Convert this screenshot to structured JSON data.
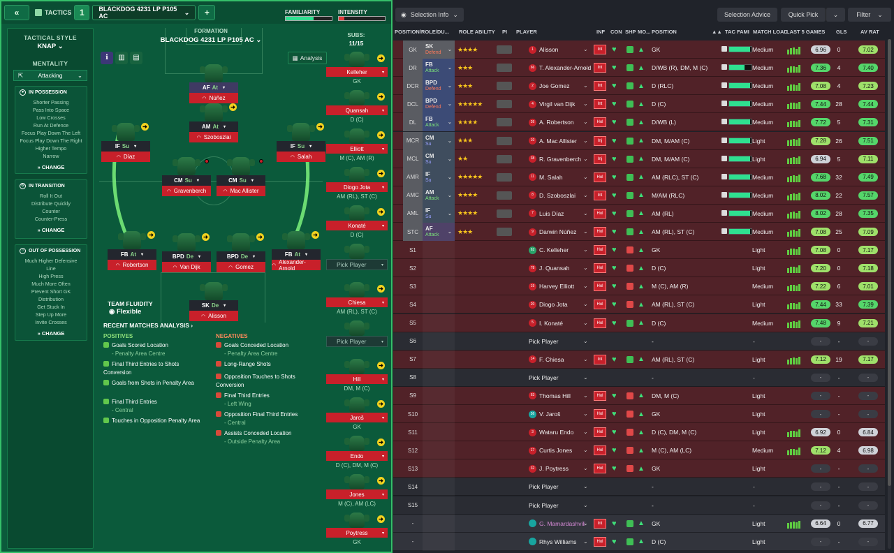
{
  "toolbar": {
    "back_icon": "double-chevron-left-icon",
    "tactics_label": "TACTICS",
    "slot_number": "1",
    "tactic_name": "BLACKDOG 4231 LP P105 AC",
    "add_label": "+",
    "familiarity_label": "FAMILIARITY",
    "familiarity_value": 0.6,
    "intensity_label": "INTENSITY",
    "intensity_value": 0.12
  },
  "side": {
    "style_title": "TACTICAL STYLE",
    "style_value": "KNAP",
    "mentality_title": "MENTALITY",
    "mentality_value": "Attacking",
    "in_possession": {
      "title": "IN POSSESSION",
      "items": [
        "Shorter Passing",
        "Pass Into Space",
        "Low Crosses",
        "Run At Defence",
        "Focus Play Down The Left",
        "Focus Play Down The Right",
        "Higher Tempo",
        "Narrow"
      ],
      "change": "CHANGE"
    },
    "in_transition": {
      "title": "IN TRANSITION",
      "items": [
        "Roll It Out",
        "Distribute Quickly",
        "Counter",
        "Counter-Press"
      ],
      "change": "CHANGE"
    },
    "out_of_possession": {
      "title": "OUT OF POSSESSION",
      "items": [
        "Much Higher Defensive",
        "Line",
        "High Press",
        "Much More Often",
        "Prevent Short GK",
        "Distribution",
        "Get Stuck In",
        "Step Up More",
        "Invite Crosses"
      ],
      "change": "CHANGE"
    }
  },
  "formation": {
    "title": "FORMATION",
    "name": "BLACKDOG 4231 LP P105 AC",
    "analysis": "Analysis",
    "subs_label": "SUBS:",
    "subs_count": "11/15",
    "fluidity_title": "TEAM FLUIDITY",
    "fluidity_value": "Flexible"
  },
  "pitch_players": [
    {
      "role": "AF",
      "duty": "At",
      "name": "Núñez"
    },
    {
      "role": "IF",
      "duty": "Su",
      "name": "Díaz"
    },
    {
      "role": "AM",
      "duty": "At",
      "name": "Szoboszlai"
    },
    {
      "role": "IF",
      "duty": "Su",
      "name": "Salah"
    },
    {
      "role": "CM",
      "duty": "Su",
      "name": "Gravenberch"
    },
    {
      "role": "CM",
      "duty": "Su",
      "name": "Mac Allister"
    },
    {
      "role": "FB",
      "duty": "At",
      "name": "Robertson"
    },
    {
      "role": "BPD",
      "duty": "De",
      "name": "Van Dijk"
    },
    {
      "role": "BPD",
      "duty": "De",
      "name": "Gomez"
    },
    {
      "role": "FB",
      "duty": "At",
      "name": "Alexander-Arnold"
    },
    {
      "role": "SK",
      "duty": "De",
      "name": "Alisson"
    }
  ],
  "subs": [
    {
      "name": "Kelleher",
      "pos": "GK"
    },
    {
      "name": "Quansah",
      "pos": "D (C)"
    },
    {
      "name": "Elliott",
      "pos": "M (C), AM (R)"
    },
    {
      "name": "Diogo Jota",
      "pos": "AM (RL), ST (C)"
    },
    {
      "name": "Konaté",
      "pos": "D (C)"
    },
    {
      "name": "Pick Player",
      "pos": ""
    },
    {
      "name": "Chiesa",
      "pos": "AM (RL), ST (C)"
    },
    {
      "name": "Pick Player",
      "pos": ""
    },
    {
      "name": "Hill",
      "pos": "DM, M (C)"
    },
    {
      "name": "Jaroš",
      "pos": "GK"
    },
    {
      "name": "Endo",
      "pos": "D (C), DM, M (C)"
    },
    {
      "name": "Jones",
      "pos": "M (C), AM (LC)"
    },
    {
      "name": "Poytress",
      "pos": "GK"
    }
  ],
  "analysis": {
    "title": "RECENT MATCHES ANALYSIS ›",
    "positives_title": "POSITIVES",
    "negatives_title": "NEGATIVES",
    "positives": [
      {
        "text": "Goals Scored Location",
        "sub": "- Penalty Area Centre"
      },
      {
        "text": "Final Third Entries to Shots Conversion",
        "sub": ""
      },
      {
        "text": "Goals from Shots in Penalty Area",
        "sub": ""
      },
      {
        "text": "Final Third Entries",
        "sub": "- Central"
      },
      {
        "text": "Touches in Opposition Penalty Area",
        "sub": ""
      }
    ],
    "negatives": [
      {
        "text": "Goals Conceded Location",
        "sub": "- Penalty Area Centre"
      },
      {
        "text": "Long-Range Shots",
        "sub": ""
      },
      {
        "text": "Opposition Touches to Shots Conversion",
        "sub": ""
      },
      {
        "text": "Final Third Entries",
        "sub": "- Left Wing"
      },
      {
        "text": "Opposition Final Third Entries",
        "sub": "- Central"
      },
      {
        "text": "Assists Conceded Location",
        "sub": "- Outside Penalty Area"
      }
    ]
  },
  "right": {
    "selection_info": "Selection Info",
    "selection_advice": "Selection Advice",
    "quick_pick": "Quick Pick",
    "filter": "Filter",
    "headers": {
      "pos_role": "POSITION/ROLE/DU...",
      "role_ability": "ROLE ABILITY",
      "pi": "PI",
      "player": "PLAYER",
      "inf": "INF",
      "con": "CON",
      "shp": "SHP",
      "mo": "MO...",
      "position": "POSITION",
      "tac": "TAC FAMI",
      "load": "MATCH LOAD",
      "last5": "LAST 5 GAMES",
      "gls": "GLS",
      "avrat": "AV RAT"
    },
    "rows": [
      {
        "slot": "GK",
        "role": "SK",
        "duty": "Defend",
        "stars": "★★★★",
        "num": "1",
        "name": "Alisson",
        "inf": "Int",
        "position": "GK",
        "tac": 0.95,
        "load": "Medium",
        "last5": "6.96",
        "gls": "0",
        "avrat": "7.02"
      },
      {
        "slot": "DR",
        "role": "FB",
        "duty": "Attack",
        "stars": "★★★",
        "num": "66",
        "name": "T. Alexander-Arnold",
        "inf": "Int",
        "position": "D/WB (R), DM, M (C)",
        "tac": 0.7,
        "load": "Medium",
        "last5": "7.36",
        "gls": "4",
        "avrat": "7.40"
      },
      {
        "slot": "DCR",
        "role": "BPD",
        "duty": "Defend",
        "stars": "★★★",
        "num": "2",
        "name": "Joe Gomez",
        "inf": "Int",
        "position": "D (RLC)",
        "tac": 0.95,
        "load": "Medium",
        "last5": "7.08",
        "gls": "4",
        "avrat": "7.23"
      },
      {
        "slot": "DCL",
        "role": "BPD",
        "duty": "Defend",
        "stars": "★★★★★",
        "num": "4",
        "name": "Virgil van Dijk",
        "inf": "Int",
        "position": "D (C)",
        "tac": 0.95,
        "load": "Medium",
        "last5": "7.44",
        "gls": "28",
        "avrat": "7.44"
      },
      {
        "slot": "DL",
        "role": "FB",
        "duty": "Attack",
        "stars": "★★★★",
        "num": "26",
        "name": "A. Robertson",
        "inf": "Hol",
        "position": "D/WB (L)",
        "tac": 0.95,
        "load": "Medium",
        "last5": "7.72",
        "gls": "5",
        "avrat": "7.31"
      },
      {
        "slot": "MCR",
        "role": "CM",
        "duty": "Su",
        "stars": "★★★",
        "num": "10",
        "name": "A. Mac Allister",
        "inf": "Inj",
        "position": "DM, M/AM (C)",
        "tac": 0.95,
        "load": "Light",
        "last5": "7.28",
        "gls": "26",
        "avrat": "7.51"
      },
      {
        "slot": "MCL",
        "role": "CM",
        "duty": "Su",
        "stars": "★★",
        "num": "38",
        "name": "R. Gravenberch",
        "inf": "Inj",
        "position": "DM, M/AM (C)",
        "tac": 0.95,
        "load": "Light",
        "last5": "6.94",
        "gls": "5",
        "avrat": "7.11"
      },
      {
        "slot": "AMR",
        "role": "IF",
        "duty": "Su",
        "stars": "★★★★★",
        "num": "11",
        "name": "M. Salah",
        "inf": "Hol",
        "position": "AM (RLC), ST (C)",
        "tac": 0.95,
        "load": "Medium",
        "last5": "7.68",
        "gls": "32",
        "avrat": "7.49"
      },
      {
        "slot": "AMC",
        "role": "AM",
        "duty": "Attack",
        "stars": "★★★★",
        "num": "8",
        "name": "D. Szoboszlai",
        "inf": "Int",
        "position": "M/AM (RLC)",
        "tac": 0.95,
        "load": "Medium",
        "last5": "8.02",
        "gls": "22",
        "avrat": "7.57"
      },
      {
        "slot": "AML",
        "role": "IF",
        "duty": "Su",
        "stars": "★★★★",
        "num": "7",
        "name": "Luis Díaz",
        "inf": "Hol",
        "position": "AM (RL)",
        "tac": 0.95,
        "load": "Medium",
        "last5": "8.02",
        "gls": "28",
        "avrat": "7.35"
      },
      {
        "slot": "STC",
        "role": "AF",
        "duty": "Attack",
        "stars": "★★★",
        "num": "9",
        "name": "Darwin Núñez",
        "inf": "Hol",
        "position": "AM (RL), ST (C)",
        "tac": 0.95,
        "load": "Medium",
        "last5": "7.08",
        "gls": "25",
        "avrat": "7.09"
      },
      {
        "slot": "S1",
        "role": "",
        "duty": "",
        "stars": "",
        "num": "62",
        "name": "C. Kelleher",
        "inf": "Hol",
        "position": "GK",
        "tac": 0,
        "load": "Light",
        "last5": "7.08",
        "gls": "0",
        "avrat": "7.17"
      },
      {
        "slot": "S2",
        "role": "",
        "duty": "",
        "stars": "",
        "num": "78",
        "name": "J. Quansah",
        "inf": "Hol",
        "position": "D (C)",
        "tac": 0,
        "load": "Light",
        "last5": "7.20",
        "gls": "0",
        "avrat": "7.18"
      },
      {
        "slot": "S3",
        "role": "",
        "duty": "",
        "stars": "",
        "num": "19",
        "name": "Harvey Elliott",
        "inf": "Hol",
        "position": "M (C), AM (R)",
        "tac": 0,
        "load": "Medium",
        "last5": "7.22",
        "gls": "6",
        "avrat": "7.01"
      },
      {
        "slot": "S4",
        "role": "",
        "duty": "",
        "stars": "",
        "num": "20",
        "name": "Diogo Jota",
        "inf": "Hol",
        "position": "AM (RL), ST (C)",
        "tac": 0,
        "load": "Light",
        "last5": "7.44",
        "gls": "33",
        "avrat": "7.39"
      },
      {
        "slot": "S5",
        "role": "",
        "duty": "",
        "stars": "",
        "num": "5",
        "name": "I. Konaté",
        "inf": "Hol",
        "position": "D (C)",
        "tac": 0,
        "load": "Medium",
        "last5": "7.48",
        "gls": "9",
        "avrat": "7.21"
      },
      {
        "slot": "S6",
        "role": "",
        "duty": "",
        "stars": "",
        "num": "",
        "name": "Pick Player",
        "inf": "",
        "position": "-",
        "tac": 0,
        "load": "-",
        "last5": "-",
        "gls": "-",
        "avrat": "-"
      },
      {
        "slot": "S7",
        "role": "",
        "duty": "",
        "stars": "",
        "num": "14",
        "name": "F. Chiesa",
        "inf": "Int",
        "position": "AM (RL), ST (C)",
        "tac": 0,
        "load": "Light",
        "last5": "7.12",
        "gls": "19",
        "avrat": "7.17"
      },
      {
        "slot": "S8",
        "role": "",
        "duty": "",
        "stars": "",
        "num": "",
        "name": "Pick Player",
        "inf": "",
        "position": "-",
        "tac": 0,
        "load": "-",
        "last5": "-",
        "gls": "-",
        "avrat": "-"
      },
      {
        "slot": "S9",
        "role": "",
        "duty": "",
        "stars": "",
        "num": "63",
        "name": "Thomas Hill",
        "inf": "Hol",
        "position": "DM, M (C)",
        "tac": 0,
        "load": "Light",
        "last5": "-",
        "gls": "-",
        "avrat": "-"
      },
      {
        "slot": "S10",
        "role": "",
        "duty": "",
        "stars": "",
        "num": "56",
        "name": "V. Jaroš",
        "inf": "Hol",
        "position": "GK",
        "tac": 0,
        "load": "Light",
        "last5": "-",
        "gls": "-",
        "avrat": "-"
      },
      {
        "slot": "S11",
        "role": "",
        "duty": "",
        "stars": "",
        "num": "3",
        "name": "Wataru Endo",
        "inf": "Hol",
        "position": "D (C), DM, M (C)",
        "tac": 0,
        "load": "Light",
        "last5": "6.92",
        "gls": "0",
        "avrat": "6.84"
      },
      {
        "slot": "S12",
        "role": "",
        "duty": "",
        "stars": "",
        "num": "17",
        "name": "Curtis Jones",
        "inf": "Hol",
        "position": "M (C), AM (LC)",
        "tac": 0,
        "load": "Medium",
        "last5": "7.12",
        "gls": "4",
        "avrat": "6.98"
      },
      {
        "slot": "S13",
        "role": "",
        "duty": "",
        "stars": "",
        "num": "32",
        "name": "J. Poytress",
        "inf": "Hol",
        "position": "GK",
        "tac": 0,
        "load": "Light",
        "last5": "-",
        "gls": "-",
        "avrat": "-"
      },
      {
        "slot": "S14",
        "role": "",
        "duty": "",
        "stars": "",
        "num": "",
        "name": "Pick Player",
        "inf": "",
        "position": "-",
        "tac": 0,
        "load": "-",
        "last5": "-",
        "gls": "-",
        "avrat": "-"
      },
      {
        "slot": "S15",
        "role": "",
        "duty": "",
        "stars": "",
        "num": "",
        "name": "Pick Player",
        "inf": "",
        "position": "-",
        "tac": 0,
        "load": "-",
        "last5": "-",
        "gls": "-",
        "avrat": "-"
      },
      {
        "slot": "-",
        "role": "",
        "duty": "",
        "stars": "",
        "num": "",
        "name": "G. Mamardashvili",
        "inf": "Int",
        "position": "GK",
        "tac": 0,
        "load": "Light",
        "last5": "6.64",
        "gls": "0",
        "avrat": "6.77"
      },
      {
        "slot": "-",
        "role": "",
        "duty": "",
        "stars": "",
        "num": "",
        "name": "Rhys Williams",
        "inf": "Hol",
        "position": "D (C)",
        "tac": 0,
        "load": "Light",
        "last5": "-",
        "gls": "-",
        "avrat": "-"
      }
    ]
  }
}
